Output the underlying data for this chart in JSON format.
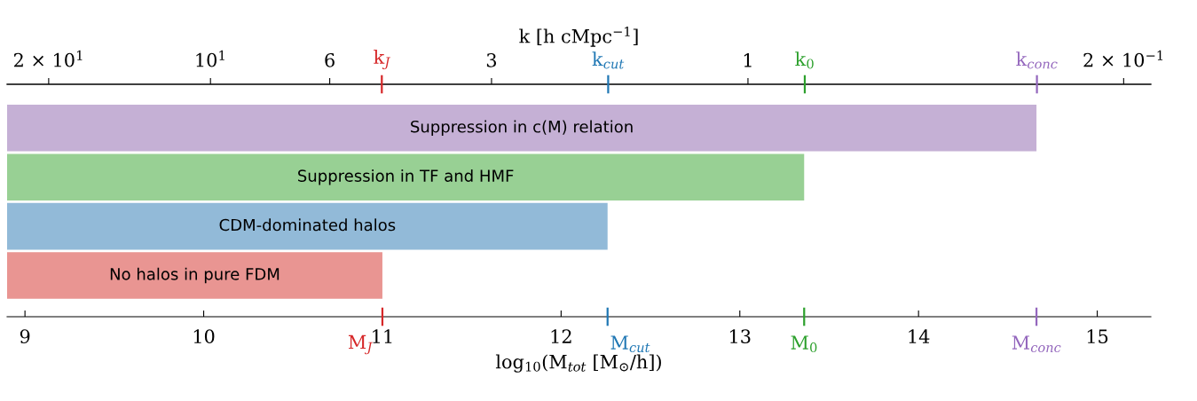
{
  "chart_data": {
    "type": "bar",
    "orientation": "horizontal",
    "xlabel": "log$_{10}$(M$_{tot}$ [M$_{⊙}$/h])",
    "x2label": "k [h cMpc$^{−1}$]",
    "categories": [
      "Suppression in c(M) relation",
      "Suppression in TF and HMF",
      "CDM-dominated halos",
      "No halos in pure FDM"
    ],
    "values": [
      14.66,
      13.36,
      12.26,
      11.0
    ],
    "colors": [
      "#c5b0d5",
      "#98d094",
      "#92bad8",
      "#e99592"
    ],
    "xlim": [
      8.9,
      15.3
    ],
    "xticks": [
      9,
      10,
      11,
      12,
      13,
      14,
      15
    ],
    "x2lim": [
      23.9,
      0.178
    ],
    "x2ticks": [
      {
        "value": 20,
        "label": "2 × 10$^{1}$"
      },
      {
        "value": 10,
        "label": "10$^{1}$"
      },
      6,
      3,
      1,
      {
        "value": 0.2,
        "label": "2 × 10$^{−1}$"
      }
    ],
    "log": "x2",
    "ref_lines": [
      {
        "axis": "x",
        "value": 11.0,
        "label": "M$_{J}$",
        "color": "#d62728"
      },
      {
        "axis": "x",
        "value": 12.26,
        "label": "M$_{cut}$",
        "color": "#1f77b4"
      },
      {
        "axis": "x",
        "value": 13.36,
        "label": "M$_{0}$",
        "color": "#2ca02c"
      },
      {
        "axis": "x",
        "value": 14.66,
        "label": "M$_{conc}$",
        "color": "#9467bd"
      },
      {
        "axis": "x2",
        "value": 4.8,
        "label": "k$_{J}$",
        "color": "#d62728"
      },
      {
        "axis": "x2",
        "value": 1.82,
        "label": "k$_{cut}$",
        "color": "#1f77b4"
      },
      {
        "axis": "x2",
        "value": 0.784,
        "label": "k$_{0}$",
        "color": "#2ca02c"
      },
      {
        "axis": "x2",
        "value": 0.29,
        "label": "k$_{conc}$",
        "color": "#9467bd"
      }
    ],
    "grid": false,
    "legend": false
  }
}
